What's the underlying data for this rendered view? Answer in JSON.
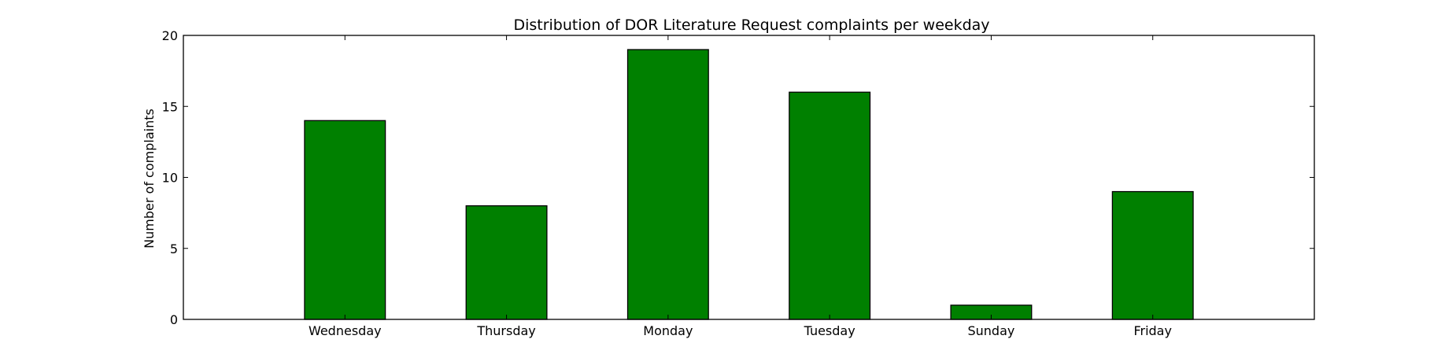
{
  "chart_data": {
    "type": "bar",
    "title": "Distribution of  DOR Literature Request complaints per weekday",
    "xlabel": "",
    "ylabel": "Number of complaints",
    "categories": [
      "Wednesday",
      "Thursday",
      "Monday",
      "Tuesday",
      "Sunday",
      "Friday"
    ],
    "values": [
      14,
      8,
      19,
      16,
      1,
      9
    ],
    "ylim": [
      0,
      20
    ],
    "yticks": [
      0,
      5,
      10,
      15,
      20
    ],
    "bar_color": "#008000",
    "grid": false,
    "legend": "none"
  }
}
